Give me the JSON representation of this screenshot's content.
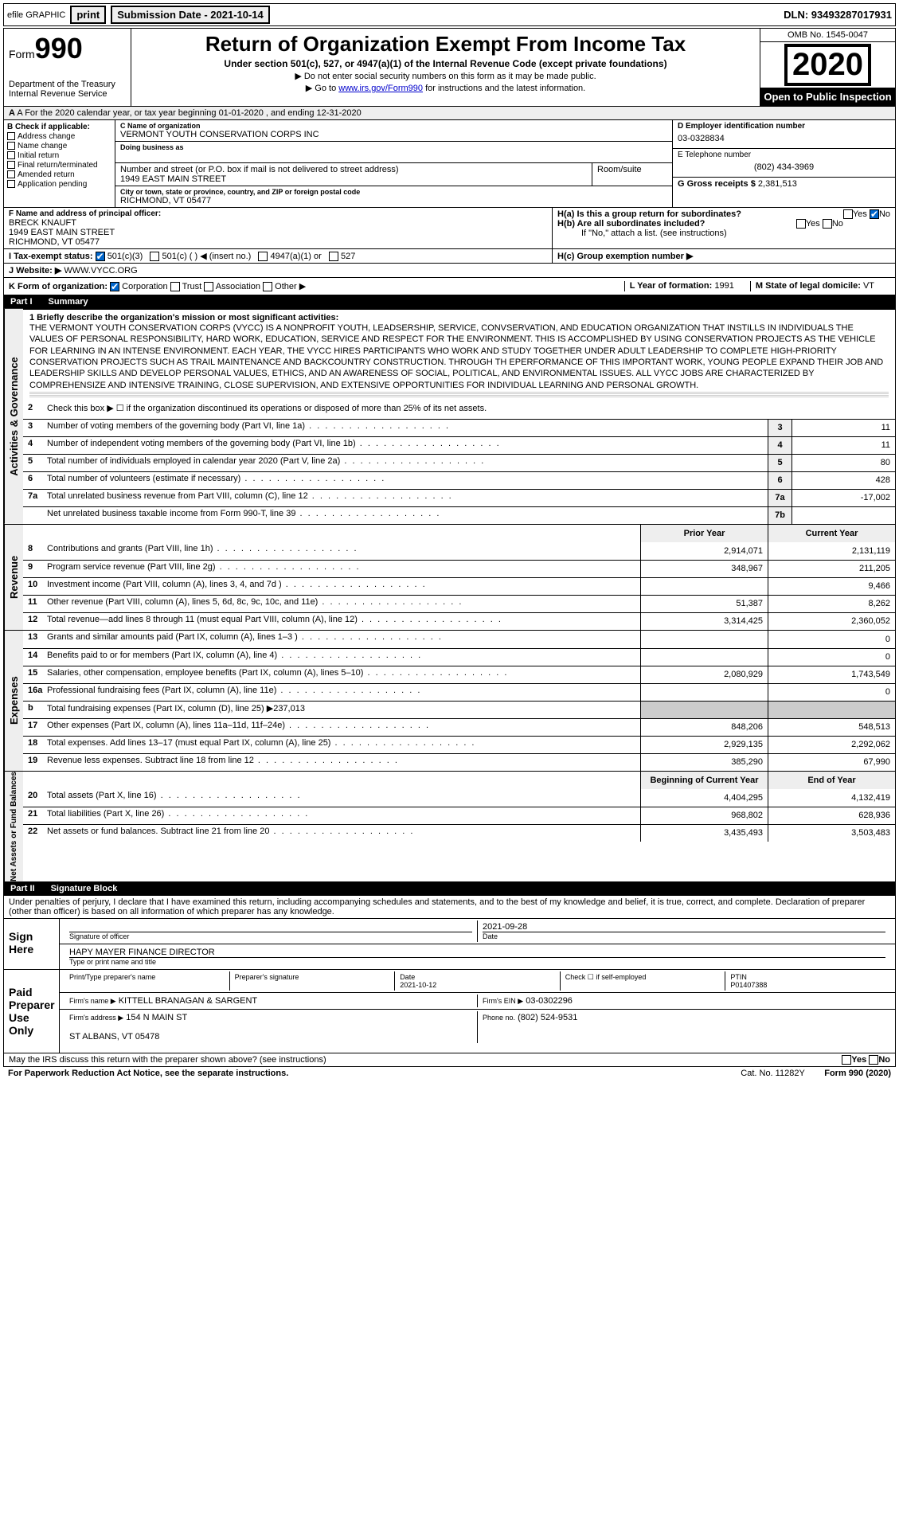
{
  "topbar": {
    "efile": "efile GRAPHIC",
    "print": "print",
    "subdate_lbl": "Submission Date - 2021-10-14",
    "dln": "DLN: 93493287017931"
  },
  "header": {
    "form_word": "Form",
    "form_num": "990",
    "dept": "Department of the Treasury\nInternal Revenue Service",
    "title": "Return of Organization Exempt From Income Tax",
    "sub": "Under section 501(c), 527, or 4947(a)(1) of the Internal Revenue Code (except private foundations)",
    "note1": "▶ Do not enter social security numbers on this form as it may be made public.",
    "note2_pre": "▶ Go to ",
    "note2_link": "www.irs.gov/Form990",
    "note2_post": " for instructions and the latest information.",
    "omb": "OMB No. 1545-0047",
    "year": "2020",
    "inspect": "Open to Public Inspection"
  },
  "row_a": "A For the 2020 calendar year, or tax year beginning 01-01-2020    , and ending 12-31-2020",
  "B": {
    "lbl": "B Check if applicable:",
    "items": [
      "Address change",
      "Name change",
      "Initial return",
      "Final return/terminated",
      "Amended return",
      "Application pending"
    ]
  },
  "C": {
    "name_lbl": "C Name of organization",
    "name": "VERMONT YOUTH CONSERVATION CORPS INC",
    "dba_lbl": "Doing business as",
    "addr_lbl": "Number and street (or P.O. box if mail is not delivered to street address)",
    "addr": "1949 EAST MAIN STREET",
    "room_lbl": "Room/suite",
    "city_lbl": "City or town, state or province, country, and ZIP or foreign postal code",
    "city": "RICHMOND, VT  05477"
  },
  "D": {
    "lbl": "D Employer identification number",
    "val": "03-0328834"
  },
  "E": {
    "lbl": "E Telephone number",
    "val": "(802) 434-3969"
  },
  "G": {
    "lbl": "G Gross receipts $",
    "val": "2,381,513"
  },
  "F": {
    "lbl": "F  Name and address of principal officer:",
    "val": "BRECK KNAUFT\n1949 EAST MAIN STREET\nRICHMOND, VT  05477"
  },
  "H": {
    "a": "H(a)  Is this a group return for subordinates?",
    "b": "H(b)  Are all subordinates included?",
    "note": "If \"No,\" attach a list. (see instructions)",
    "c": "H(c)  Group exemption number ▶",
    "yes": "Yes",
    "no": "No"
  },
  "I": {
    "lbl": "I   Tax-exempt status:",
    "opts": [
      "501(c)(3)",
      "501(c) (  ) ◀ (insert no.)",
      "4947(a)(1) or",
      "527"
    ]
  },
  "J": {
    "lbl": "J   Website: ▶",
    "val": "WWW.VYCC.ORG"
  },
  "K": {
    "lbl": "K Form of organization:",
    "opts": [
      "Corporation",
      "Trust",
      "Association",
      "Other ▶"
    ]
  },
  "L": {
    "lbl": "L Year of formation:",
    "val": "1991"
  },
  "M": {
    "lbl": "M State of legal domicile:",
    "val": "VT"
  },
  "part1": {
    "num": "Part I",
    "title": "Summary"
  },
  "mission_lbl": "1   Briefly describe the organization's mission or most significant activities:",
  "mission": "THE VERMONT YOUTH CONSERVATION CORPS (VYCC) IS A NONPROFIT YOUTH, LEADSERSHIP, SERVICE, CONVSERVATION, AND EDUCATION ORGANIZATION THAT INSTILLS IN INDIVIDUALS THE VALUES OF PERSONAL RESPONSIBILITY, HARD WORK, EDUCATION, SERVICE AND RESPECT FOR THE ENVIRONMENT. THIS IS ACCOMPLISHED BY USING CONSERVATION PROJECTS AS THE VEHICLE FOR LEARNING IN AN INTENSE ENVIRONMENT. EACH YEAR, THE VYCC HIRES PARTICIPANTS WHO WORK AND STUDY TOGETHER UNDER ADULT LEADERSHIP TO COMPLETE HIGH-PRIORITY CONSERVATION PROJECTS SUCH AS TRAIL MAINTENANCE AND BACKCOUNTRY CONSTRUCTION. THROUGH TH EPERFORMANCE OF THIS IMPORTANT WORK, YOUNG PEOPLE EXPAND THEIR JOB AND LEADERSHIP SKILLS AND DEVELOP PERSONAL VALUES, ETHICS, AND AN AWARENESS OF SOCIAL, POLITICAL, AND ENVIRONMENTAL ISSUES. ALL VYCC JOBS ARE CHARACTERIZED BY COMPREHENSIZE AND INTENSIVE TRAINING, CLOSE SUPERVISION, AND EXTENSIVE OPPORTUNITIES FOR INDIVIDUAL LEARNING AND PERSONAL GROWTH.",
  "gov_lines": [
    {
      "n": "2",
      "d": "Check this box ▶ ☐ if the organization discontinued its operations or disposed of more than 25% of its net assets."
    },
    {
      "n": "3",
      "d": "Number of voting members of the governing body (Part VI, line 1a)",
      "c": "3",
      "v": "11"
    },
    {
      "n": "4",
      "d": "Number of independent voting members of the governing body (Part VI, line 1b)",
      "c": "4",
      "v": "11"
    },
    {
      "n": "5",
      "d": "Total number of individuals employed in calendar year 2020 (Part V, line 2a)",
      "c": "5",
      "v": "80"
    },
    {
      "n": "6",
      "d": "Total number of volunteers (estimate if necessary)",
      "c": "6",
      "v": "428"
    },
    {
      "n": "7a",
      "d": "Total unrelated business revenue from Part VIII, column (C), line 12",
      "c": "7a",
      "v": "-17,002"
    },
    {
      "n": "",
      "d": "Net unrelated business taxable income from Form 990-T, line 39",
      "c": "7b",
      "v": ""
    }
  ],
  "col_hdr": {
    "prior": "Prior Year",
    "current": "Current Year",
    "begin": "Beginning of Current Year",
    "end": "End of Year"
  },
  "revenue": [
    {
      "n": "8",
      "d": "Contributions and grants (Part VIII, line 1h)",
      "p": "2,914,071",
      "c": "2,131,119"
    },
    {
      "n": "9",
      "d": "Program service revenue (Part VIII, line 2g)",
      "p": "348,967",
      "c": "211,205"
    },
    {
      "n": "10",
      "d": "Investment income (Part VIII, column (A), lines 3, 4, and 7d )",
      "p": "",
      "c": "9,466"
    },
    {
      "n": "11",
      "d": "Other revenue (Part VIII, column (A), lines 5, 6d, 8c, 9c, 10c, and 11e)",
      "p": "51,387",
      "c": "8,262"
    },
    {
      "n": "12",
      "d": "Total revenue—add lines 8 through 11 (must equal Part VIII, column (A), line 12)",
      "p": "3,314,425",
      "c": "2,360,052"
    }
  ],
  "expenses": [
    {
      "n": "13",
      "d": "Grants and similar amounts paid (Part IX, column (A), lines 1–3 )",
      "p": "",
      "c": "0"
    },
    {
      "n": "14",
      "d": "Benefits paid to or for members (Part IX, column (A), line 4)",
      "p": "",
      "c": "0"
    },
    {
      "n": "15",
      "d": "Salaries, other compensation, employee benefits (Part IX, column (A), lines 5–10)",
      "p": "2,080,929",
      "c": "1,743,549"
    },
    {
      "n": "16a",
      "d": "Professional fundraising fees (Part IX, column (A), line 11e)",
      "p": "",
      "c": "0"
    },
    {
      "n": "b",
      "d": "Total fundraising expenses (Part IX, column (D), line 25) ▶237,013",
      "grey": true
    },
    {
      "n": "17",
      "d": "Other expenses (Part IX, column (A), lines 11a–11d, 11f–24e)",
      "p": "848,206",
      "c": "548,513"
    },
    {
      "n": "18",
      "d": "Total expenses. Add lines 13–17 (must equal Part IX, column (A), line 25)",
      "p": "2,929,135",
      "c": "2,292,062"
    },
    {
      "n": "19",
      "d": "Revenue less expenses. Subtract line 18 from line 12",
      "p": "385,290",
      "c": "67,990"
    }
  ],
  "netassets": [
    {
      "n": "20",
      "d": "Total assets (Part X, line 16)",
      "p": "4,404,295",
      "c": "4,132,419"
    },
    {
      "n": "21",
      "d": "Total liabilities (Part X, line 26)",
      "p": "968,802",
      "c": "628,936"
    },
    {
      "n": "22",
      "d": "Net assets or fund balances. Subtract line 21 from line 20",
      "p": "3,435,493",
      "c": "3,503,483"
    }
  ],
  "vtabs": {
    "gov": "Activities & Governance",
    "rev": "Revenue",
    "exp": "Expenses",
    "net": "Net Assets or Fund Balances"
  },
  "part2": {
    "num": "Part II",
    "title": "Signature Block"
  },
  "perjury": "Under penalties of perjury, I declare that I have examined this return, including accompanying schedules and statements, and to the best of my knowledge and belief, it is true, correct, and complete. Declaration of preparer (other than officer) is based on all information of which preparer has any knowledge.",
  "sign": {
    "here": "Sign Here",
    "sig_lbl": "Signature of officer",
    "date": "2021-09-28",
    "date_lbl": "Date",
    "name": "HAPY MAYER  FINANCE DIRECTOR",
    "name_lbl": "Type or print name and title"
  },
  "paid": {
    "lbl": "Paid Preparer Use Only",
    "col1": "Print/Type preparer's name",
    "col2": "Preparer's signature",
    "col3_lbl": "Date",
    "col3": "2021-10-12",
    "col4_lbl": "Check ☐ if self-employed",
    "ptin_lbl": "PTIN",
    "ptin": "P01407388",
    "firm_lbl": "Firm's name    ▶",
    "firm": "KITTELL BRANAGAN & SARGENT",
    "ein_lbl": "Firm's EIN ▶",
    "ein": "03-0302296",
    "addr_lbl": "Firm's address ▶",
    "addr": "154 N MAIN ST\n\nST ALBANS, VT  05478",
    "phone_lbl": "Phone no.",
    "phone": "(802) 524-9531"
  },
  "discuss": "May the IRS discuss this return with the preparer shown above? (see instructions)",
  "footer": {
    "left": "For Paperwork Reduction Act Notice, see the separate instructions.",
    "mid": "Cat. No. 11282Y",
    "right": "Form 990 (2020)"
  }
}
